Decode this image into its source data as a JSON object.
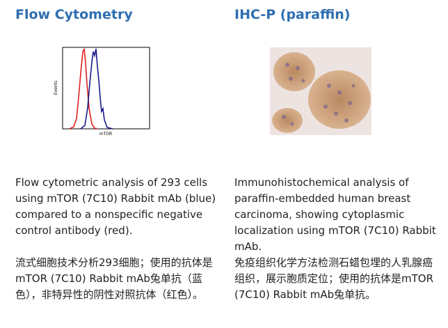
{
  "panels": [
    {
      "title": "Flow Cytometry",
      "figure": {
        "y_label": "Events",
        "x_label": "mTOR"
      },
      "caption_en": "Flow cytometric analysis of 293 cells using mTOR (7C10) Rabbit mAb (blue) compared to a nonspecific negative control antibody (red).",
      "caption_zh": "流式细胞技术分析293细胞；使用的抗体是mTOR (7C10) Rabbit mAb兔单抗（蓝色），非特异性的阴性对照抗体（红色）。"
    },
    {
      "title": "IHC-P (paraffin)",
      "caption_en": "Immunohistochemical analysis of paraffin-embedded human breast carcinoma, showing cytoplasmic localization using mTOR (7C10) Rabbit mAb.",
      "caption_zh": "免疫组织化学方法检测石蜡包埋的人乳腺癌组织，展示胞质定位；使用的抗体是mTOR (7C10) Rabbit mAb兔单抗。"
    }
  ]
}
